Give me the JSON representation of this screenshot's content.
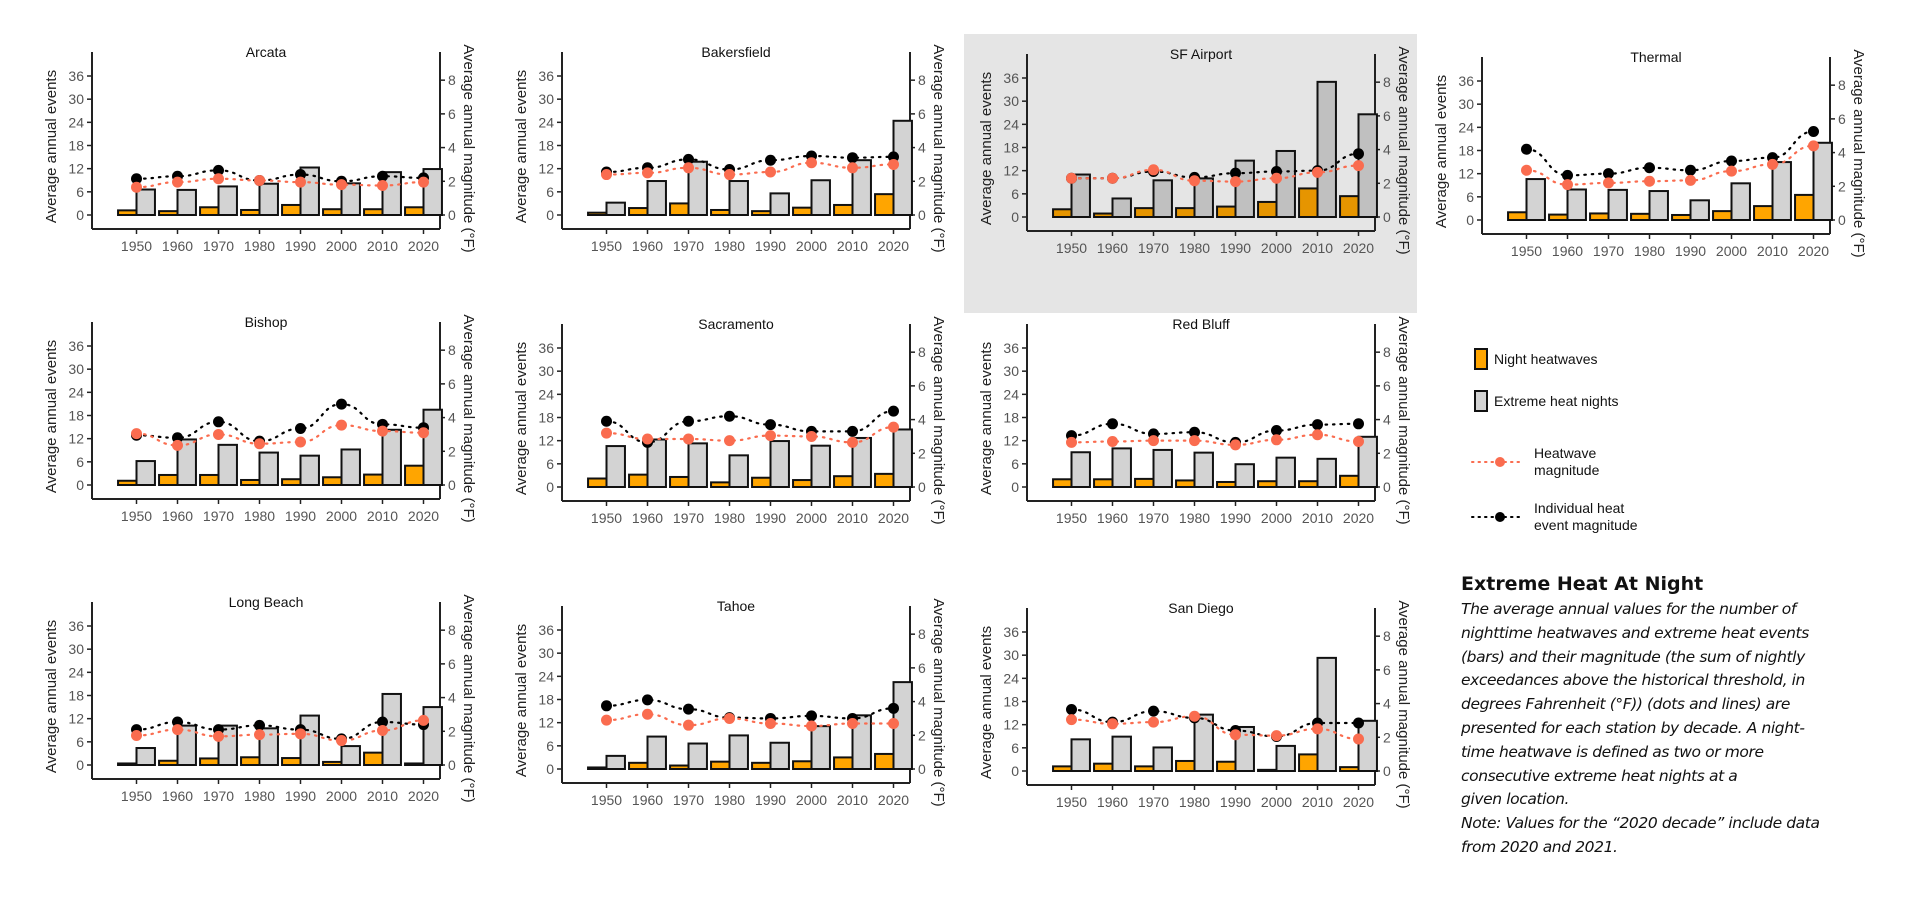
{
  "chart_data": {
    "type": "bar",
    "subtype": "small-multiples bar + dotted line, dual axis",
    "categories": [
      "1950",
      "1960",
      "1970",
      "1980",
      "1990",
      "2000",
      "2010",
      "2020"
    ],
    "left_axis": {
      "label": "Average annual events",
      "ticks": [
        0,
        6,
        12,
        18,
        24,
        30,
        36
      ],
      "range": [
        0,
        39
      ]
    },
    "right_axis": {
      "label": "Average annual magnitude (°F)",
      "ticks": [
        0,
        2,
        4,
        6,
        8
      ],
      "range": [
        0,
        8.667
      ]
    },
    "series_styles": [
      {
        "name": "Night heatwaves",
        "kind": "bar",
        "axis": "left",
        "color": "#FFA500"
      },
      {
        "name": "Extreme heat nights",
        "kind": "bar",
        "axis": "left",
        "color": "#D3D3D3"
      },
      {
        "name": "Heatwave magnitude",
        "kind": "dotted-line-points",
        "axis": "right",
        "color": "#FA6C4F"
      },
      {
        "name": "Individual heat event magnitude",
        "kind": "dotted-line-points",
        "axis": "right",
        "color": "#000000"
      }
    ],
    "highlighted_panel": "SF Airport",
    "panels": [
      {
        "title": "Arcata",
        "night_heatwaves": [
          1.2,
          1.0,
          2.0,
          1.3,
          2.6,
          1.5,
          1.5,
          2.0
        ],
        "extreme_heat_nights": [
          6.6,
          6.5,
          7.4,
          8.1,
          12.3,
          8.2,
          11.1,
          11.9
        ],
        "heatwave_magnitude": [
          1.65,
          1.95,
          2.15,
          2.05,
          1.95,
          1.8,
          1.75,
          1.95
        ],
        "individual_magnitude": [
          2.15,
          2.3,
          2.65,
          2.05,
          2.4,
          2.0,
          2.3,
          2.2
        ]
      },
      {
        "title": "Bakersfield",
        "night_heatwaves": [
          0.6,
          1.8,
          3.0,
          1.3,
          1.0,
          1.9,
          2.6,
          5.4
        ],
        "extreme_heat_nights": [
          3.2,
          8.8,
          13.8,
          8.8,
          5.6,
          9.0,
          14.2,
          24.4
        ],
        "heatwave_magnitude": [
          2.4,
          2.5,
          2.8,
          2.4,
          2.55,
          3.1,
          2.8,
          3.0
        ],
        "individual_magnitude": [
          2.55,
          2.8,
          3.3,
          2.7,
          3.25,
          3.5,
          3.4,
          3.45
        ]
      },
      {
        "title": "SF Airport",
        "night_heatwaves": [
          2.0,
          0.9,
          2.3,
          2.3,
          2.7,
          3.9,
          7.4,
          5.4
        ],
        "extreme_heat_nights": [
          11.0,
          4.8,
          9.5,
          10.0,
          14.6,
          17.1,
          35.0,
          26.6
        ],
        "heatwave_magnitude": [
          2.3,
          2.3,
          2.8,
          2.15,
          2.1,
          2.3,
          2.65,
          3.05
        ],
        "individual_magnitude": [
          2.3,
          2.3,
          2.7,
          2.35,
          2.6,
          2.7,
          2.75,
          3.75
        ]
      },
      {
        "title": "Thermal",
        "night_heatwaves": [
          2.0,
          1.4,
          1.7,
          1.6,
          1.3,
          2.3,
          3.6,
          6.5
        ],
        "extreme_heat_nights": [
          10.6,
          7.9,
          7.8,
          7.5,
          5.1,
          9.5,
          15.0,
          20.0
        ],
        "heatwave_magnitude": [
          2.95,
          2.1,
          2.2,
          2.3,
          2.35,
          2.9,
          3.3,
          4.4
        ],
        "individual_magnitude": [
          4.2,
          2.65,
          2.75,
          3.1,
          2.95,
          3.5,
          3.7,
          5.25
        ]
      },
      {
        "title": "Bishop",
        "night_heatwaves": [
          1.1,
          2.6,
          2.6,
          1.3,
          1.5,
          2.0,
          2.7,
          5.0
        ],
        "extreme_heat_nights": [
          6.2,
          11.8,
          10.4,
          8.4,
          7.6,
          9.2,
          14.3,
          19.5
        ],
        "heatwave_magnitude": [
          3.05,
          2.35,
          3.0,
          2.45,
          2.55,
          3.55,
          3.2,
          3.1
        ],
        "individual_magnitude": [
          2.95,
          2.8,
          3.75,
          2.6,
          3.35,
          4.8,
          3.6,
          3.4
        ]
      },
      {
        "title": "Sacramento",
        "night_heatwaves": [
          2.2,
          3.2,
          2.6,
          1.2,
          2.4,
          1.8,
          2.8,
          3.4
        ],
        "extreme_heat_nights": [
          10.6,
          12.3,
          11.3,
          8.2,
          11.9,
          10.7,
          12.7,
          14.9
        ],
        "heatwave_magnitude": [
          3.2,
          2.85,
          2.85,
          2.75,
          3.05,
          3.0,
          2.65,
          3.55
        ],
        "individual_magnitude": [
          3.9,
          2.65,
          3.9,
          4.2,
          3.7,
          3.3,
          3.3,
          4.5
        ]
      },
      {
        "title": "Red Bluff",
        "night_heatwaves": [
          2.0,
          2.0,
          2.1,
          1.7,
          1.3,
          1.5,
          1.5,
          2.9
        ],
        "extreme_heat_nights": [
          9.0,
          10.0,
          9.6,
          8.9,
          5.9,
          7.6,
          7.3,
          13.0
        ],
        "heatwave_magnitude": [
          2.65,
          2.7,
          2.75,
          2.75,
          2.5,
          2.8,
          3.1,
          2.7
        ],
        "individual_magnitude": [
          3.05,
          3.75,
          3.15,
          3.25,
          2.65,
          3.35,
          3.7,
          3.75
        ]
      },
      {
        "title": "Long Beach",
        "night_heatwaves": [
          0.4,
          1.1,
          1.7,
          2.0,
          1.8,
          0.8,
          3.2,
          0.4
        ],
        "extreme_heat_nights": [
          4.4,
          10.2,
          10.2,
          9.5,
          12.8,
          4.9,
          18.4,
          15.0
        ],
        "heatwave_magnitude": [
          1.75,
          2.1,
          1.7,
          1.8,
          1.85,
          1.45,
          2.05,
          2.65
        ],
        "individual_magnitude": [
          2.1,
          2.55,
          2.1,
          2.35,
          2.1,
          1.55,
          2.55,
          2.4
        ]
      },
      {
        "title": "Tahoe",
        "night_heatwaves": [
          0.4,
          1.6,
          0.9,
          1.9,
          1.6,
          2.0,
          3.0,
          3.9
        ],
        "extreme_heat_nights": [
          3.4,
          8.4,
          6.6,
          8.7,
          6.8,
          11.1,
          13.9,
          22.5
        ],
        "heatwave_magnitude": [
          2.9,
          3.25,
          2.6,
          3.0,
          2.7,
          2.55,
          2.7,
          2.7
        ],
        "individual_magnitude": [
          3.75,
          4.1,
          3.55,
          3.05,
          3.0,
          3.15,
          3.0,
          3.6
        ]
      },
      {
        "title": "San Diego",
        "night_heatwaves": [
          1.2,
          1.9,
          1.2,
          2.6,
          2.4,
          0.3,
          4.3,
          1.0
        ],
        "extreme_heat_nights": [
          8.2,
          8.9,
          6.1,
          14.6,
          11.4,
          6.5,
          29.3,
          13.0
        ],
        "heatwave_magnitude": [
          3.05,
          2.8,
          2.9,
          3.25,
          2.15,
          2.1,
          2.5,
          1.9
        ],
        "individual_magnitude": [
          3.65,
          2.9,
          3.55,
          3.15,
          2.4,
          2.05,
          2.85,
          2.85
        ]
      }
    ]
  },
  "legend": {
    "items": [
      {
        "label": "Night heatwaves"
      },
      {
        "label": "Extreme heat nights"
      },
      {
        "label_line1": "Heatwave",
        "label_line2": "magnitude"
      },
      {
        "label_line1": "Individual heat",
        "label_line2": "event magnitude"
      }
    ]
  },
  "caption": {
    "title": "Extreme Heat At Night",
    "body": "The average annual values for the number of\nnighttime heatwaves and extreme heat events\n(bars) and their magnitude (the sum of nightly\nexceedances above the historical threshold, in\ndegrees Fahrenheit (°F)) (dots and lines) are\npresented for each station by decade. A night-\ntime heatwave is defined as two or more\nconsecutive extreme heat nights at a\ngiven location.\nNote: Values for the “2020 decade” include data\nfrom 2020 and 2021."
  }
}
